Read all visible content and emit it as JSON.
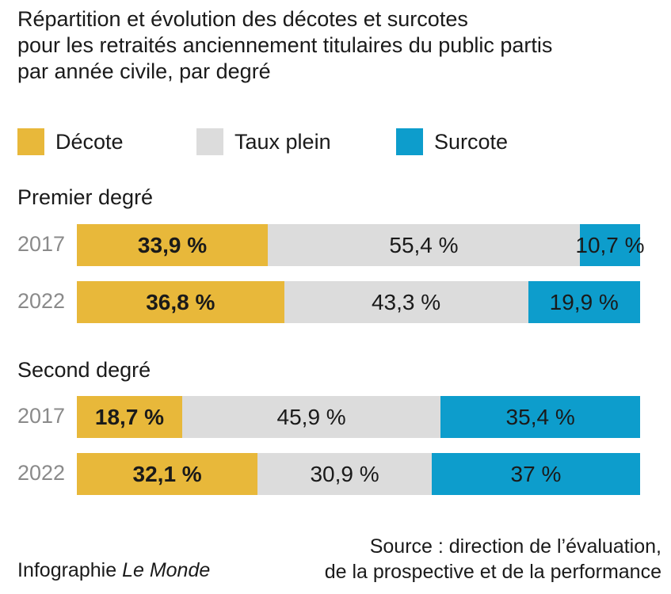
{
  "title_lines": [
    "Répartition et évolution des décotes et surcotes",
    "pour les retraités anciennement titulaires du public partis",
    "par année civile, par degré"
  ],
  "colors": {
    "decote": "#e8b83a",
    "taux_plein": "#dcdcdc",
    "surcote": "#0d9dcc"
  },
  "legend": [
    {
      "label": "Décote",
      "color": "#e8b83a"
    },
    {
      "label": "Taux plein",
      "color": "#dcdcdc"
    },
    {
      "label": "Surcote",
      "color": "#0d9dcc"
    }
  ],
  "chart_data": {
    "type": "bar",
    "stacked": true,
    "orientation": "horizontal",
    "normalized": true,
    "title": "Répartition et évolution des décotes et surcotes pour les retraités anciennement titulaires du public partis par année civile, par degré",
    "series_names": [
      "Décote",
      "Taux plein",
      "Surcote"
    ],
    "groups": [
      {
        "name": "Premier degré",
        "rows": [
          {
            "year": "2017",
            "values": [
              33.9,
              55.4,
              10.7
            ],
            "labels": [
              "33,9 %",
              "55,4 %",
              "10,7 %"
            ]
          },
          {
            "year": "2022",
            "values": [
              36.8,
              43.3,
              19.9
            ],
            "labels": [
              "36,8 %",
              "43,3 %",
              "19,9 %"
            ]
          }
        ]
      },
      {
        "name": "Second degré",
        "rows": [
          {
            "year": "2017",
            "values": [
              18.7,
              45.9,
              35.4
            ],
            "labels": [
              "18,7 %",
              "45,9 %",
              "35,4 %"
            ]
          },
          {
            "year": "2022",
            "values": [
              32.1,
              30.9,
              37.0
            ],
            "labels": [
              "32,1 %",
              "30,9 %",
              "37 %"
            ]
          }
        ]
      }
    ],
    "grid": false,
    "legend_position": "top"
  },
  "footer": {
    "credit_prefix": "Infographie",
    "credit_name": "Le Monde",
    "source_line1": "Source : direction de l’évaluation,",
    "source_line2": "de la prospective et de la performance"
  }
}
